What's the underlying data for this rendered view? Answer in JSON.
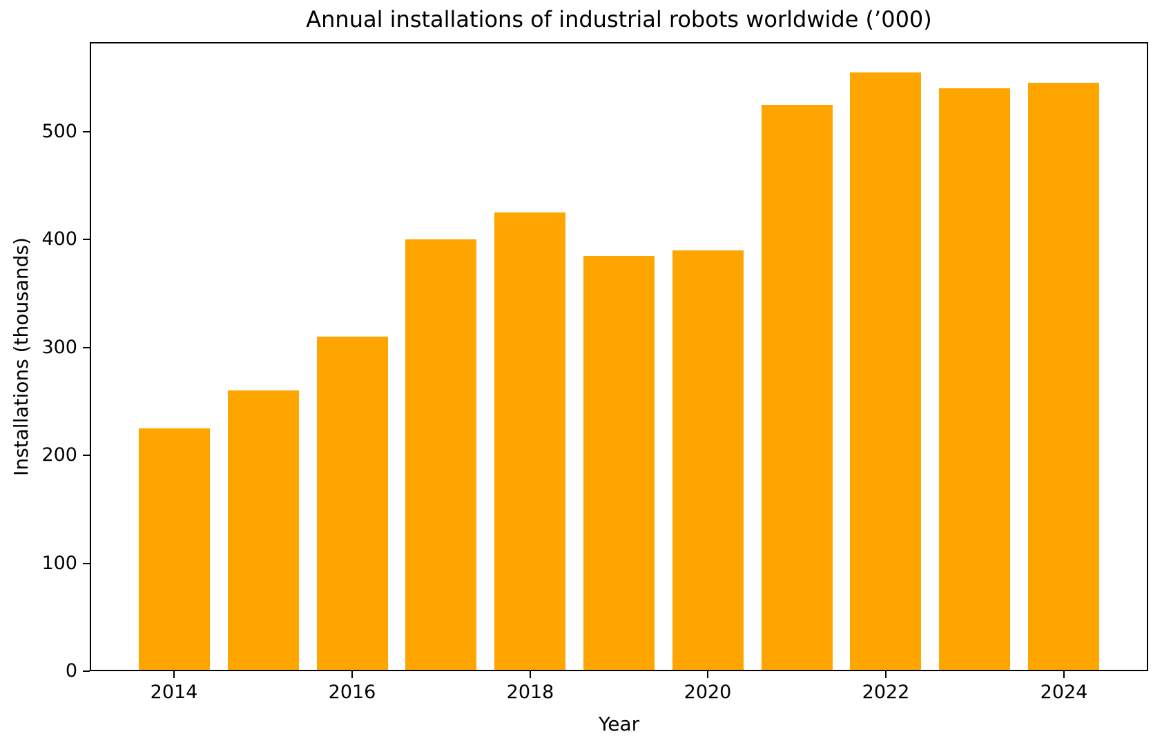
{
  "chart_data": {
    "type": "bar",
    "title": "Annual installations of industrial robots worldwide (’000)",
    "xlabel": "Year",
    "ylabel": "Installations (thousands)",
    "categories": [
      2014,
      2015,
      2016,
      2017,
      2018,
      2019,
      2020,
      2021,
      2022,
      2023,
      2024
    ],
    "values": [
      225,
      260,
      310,
      400,
      425,
      385,
      390,
      525,
      555,
      540,
      545
    ],
    "xticks": [
      2014,
      2016,
      2018,
      2020,
      2022,
      2024
    ],
    "yticks": [
      0,
      100,
      200,
      300,
      400,
      500
    ],
    "ylim": [
      0,
      583
    ],
    "bar_color": "#FFA500",
    "axis_color": "#000000",
    "background_color": "#FFFFFF",
    "grid": false,
    "legend_position": "none"
  }
}
